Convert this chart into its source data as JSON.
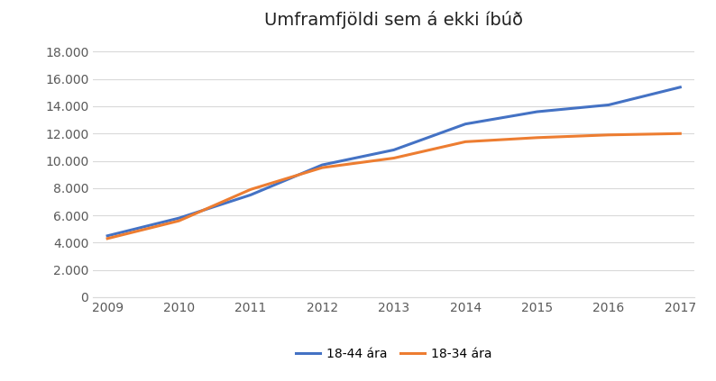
{
  "title": "Umframfjöldi sem á ekki íbúð",
  "years": [
    2009,
    2010,
    2011,
    2012,
    2013,
    2014,
    2015,
    2016,
    2017
  ],
  "series": [
    {
      "label": "18-44 ára",
      "color": "#4472C4",
      "values": [
        4500,
        5800,
        7500,
        9700,
        10800,
        12700,
        13600,
        14100,
        15400
      ]
    },
    {
      "label": "18-34 ára",
      "color": "#ED7D31",
      "values": [
        4300,
        5600,
        7900,
        9500,
        10200,
        11400,
        11700,
        11900,
        12000
      ]
    }
  ],
  "ylim": [
    0,
    19000
  ],
  "yticks": [
    0,
    2000,
    4000,
    6000,
    8000,
    10000,
    12000,
    14000,
    16000,
    18000
  ],
  "background_color": "#ffffff",
  "grid_color": "#d9d9d9",
  "title_fontsize": 14,
  "legend_fontsize": 10,
  "tick_fontsize": 10,
  "figsize": [
    7.94,
    4.23
  ],
  "dpi": 100
}
